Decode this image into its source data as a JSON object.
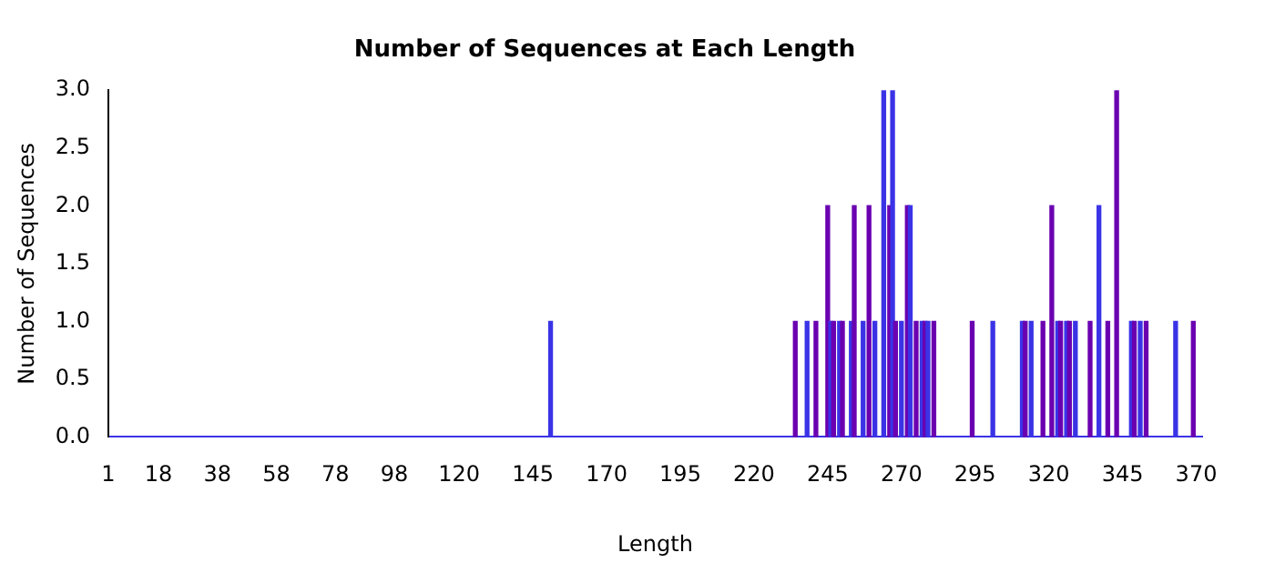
{
  "chart_data": {
    "type": "bar",
    "title": "Number of Sequences at Each Length",
    "xlabel": "Length",
    "ylabel": "Number of Sequences",
    "x": [
      151,
      234,
      238,
      241,
      245,
      246,
      247,
      249,
      250,
      253,
      254,
      257,
      259,
      261,
      264,
      266,
      267,
      268,
      270,
      272,
      273,
      275,
      277,
      278,
      279,
      281,
      294,
      301,
      311,
      312,
      314,
      318,
      321,
      323,
      324,
      326,
      327,
      329,
      334,
      337,
      340,
      343,
      348,
      349,
      351,
      353,
      363,
      369
    ],
    "values": [
      1,
      1,
      1,
      1,
      2,
      1,
      1,
      1,
      1,
      1,
      2,
      1,
      2,
      1,
      3,
      2,
      3,
      1,
      1,
      2,
      2,
      1,
      1,
      1,
      1,
      1,
      1,
      1,
      1,
      1,
      1,
      1,
      2,
      1,
      1,
      1,
      1,
      1,
      1,
      2,
      1,
      3,
      1,
      1,
      1,
      1,
      1,
      1
    ],
    "colors": [
      "#3a33e6",
      "#6a00b0",
      "#3a33e6",
      "#6a00b0",
      "#6a00b0",
      "#3a33e6",
      "#6a00b0",
      "#3a33e6",
      "#6a00b0",
      "#3a33e6",
      "#6a00b0",
      "#3a33e6",
      "#6a00b0",
      "#3a33e6",
      "#3a33e6",
      "#6a00b0",
      "#3a33e6",
      "#6a00b0",
      "#3a33e6",
      "#6a00b0",
      "#3a33e6",
      "#6a00b0",
      "#3a33e6",
      "#6a00b0",
      "#3a33e6",
      "#6a00b0",
      "#6a00b0",
      "#3a33e6",
      "#3a33e6",
      "#6a00b0",
      "#3a33e6",
      "#6a00b0",
      "#6a00b0",
      "#3a33e6",
      "#6a00b0",
      "#3a33e6",
      "#6a00b0",
      "#3a33e6",
      "#6a00b0",
      "#3a33e6",
      "#6a00b0",
      "#6a00b0",
      "#3a33e6",
      "#6a00b0",
      "#3a33e6",
      "#6a00b0",
      "#3a33e6",
      "#6a00b0"
    ],
    "xlim": [
      1,
      372
    ],
    "xticks": [
      1,
      18,
      38,
      58,
      78,
      98,
      120,
      145,
      170,
      195,
      220,
      245,
      270,
      295,
      320,
      345,
      370
    ],
    "ylim": [
      0,
      3
    ],
    "yticks": [
      {
        "value": 0,
        "label": "0.0"
      },
      {
        "value": 0.5,
        "label": "0.5"
      },
      {
        "value": 1,
        "label": "1.0"
      },
      {
        "value": 1.5,
        "label": "1.5"
      },
      {
        "value": 2,
        "label": "2.0"
      },
      {
        "value": 2.5,
        "label": "2.5"
      },
      {
        "value": 3,
        "label": "3.0"
      }
    ],
    "grid": false,
    "legend": false
  }
}
